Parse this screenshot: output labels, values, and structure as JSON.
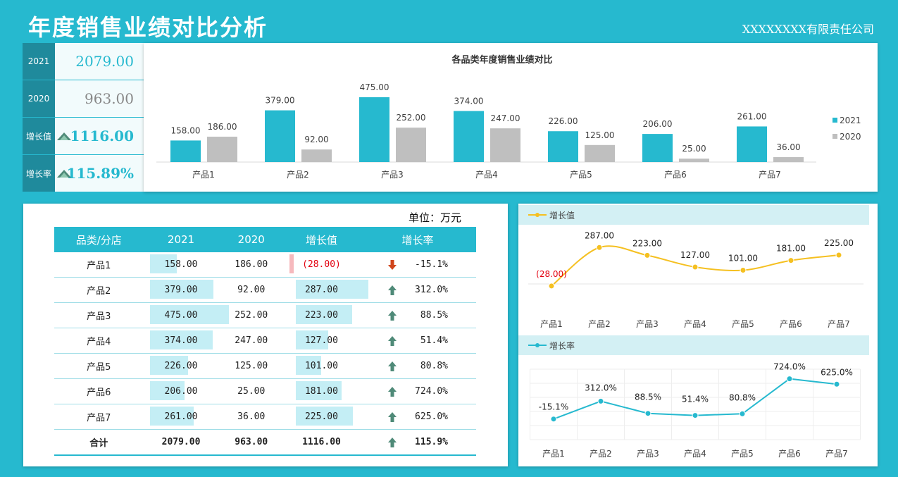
{
  "header": {
    "title": "年度销售业绩对比分析",
    "company": "XXXXXXXX有限责任公司"
  },
  "kpi": {
    "rows": [
      {
        "label": "2021",
        "value": "2079.00",
        "color": "#26b9cf"
      },
      {
        "label": "2020",
        "value": "963.00",
        "color": "#888888"
      },
      {
        "label": "增长值",
        "value": "1116.00",
        "color": "#26b9cf",
        "icon": "tree-icon"
      },
      {
        "label": "增长率",
        "value": "115.89%",
        "color": "#26b9cf",
        "icon": "tree-icon"
      }
    ]
  },
  "chart_data": [
    {
      "type": "bar",
      "title": "各品类年度销售业绩对比",
      "categories": [
        "产品1",
        "产品2",
        "产品3",
        "产品4",
        "产品5",
        "产品6",
        "产品7"
      ],
      "series": [
        {
          "name": "2021",
          "values": [
            158,
            379,
            475,
            374,
            226,
            206,
            261
          ],
          "color": "#26b9cf"
        },
        {
          "name": "2020",
          "values": [
            186,
            92,
            252,
            247,
            125,
            25,
            36
          ],
          "color": "#bfbfbf"
        }
      ],
      "data_labels": [
        [
          "158.00",
          "379.00",
          "475.00",
          "374.00",
          "226.00",
          "206.00",
          "261.00"
        ],
        [
          "186.00",
          "92.00",
          "252.00",
          "247.00",
          "125.00",
          "25.00",
          "36.00"
        ]
      ],
      "ylim": [
        0,
        500
      ],
      "legend": "right"
    },
    {
      "type": "line",
      "series": [
        {
          "name": "增长值",
          "values": [
            -28,
            287,
            223,
            127,
            101,
            181,
            225
          ],
          "color": "#f5c021"
        }
      ],
      "categories": [
        "产品1",
        "产品2",
        "产品3",
        "产品4",
        "产品5",
        "产品6",
        "产品7"
      ],
      "data_labels": [
        "(28.00)",
        "287.00",
        "223.00",
        "127.00",
        "101.00",
        "181.00",
        "225.00"
      ],
      "ylim": [
        -40,
        300
      ],
      "legend": "top-left"
    },
    {
      "type": "line",
      "series": [
        {
          "name": "增长率",
          "values": [
            -15.1,
            312.0,
            88.5,
            51.4,
            80.8,
            724.0,
            625.0
          ],
          "color": "#26b9cf"
        }
      ],
      "categories": [
        "产品1",
        "产品2",
        "产品3",
        "产品4",
        "产品5",
        "产品6",
        "产品7"
      ],
      "data_labels": [
        "-15.1%",
        "312.0%",
        "88.5%",
        "51.4%",
        "80.8%",
        "724.0%",
        "625.0%"
      ],
      "ylim": [
        -200,
        900
      ],
      "legend": "top-left"
    },
    {
      "type": "table",
      "unit": "单位：万元",
      "headers": [
        "品类/分店",
        "2021",
        "2020",
        "增长值",
        "增长率"
      ],
      "rows": [
        {
          "name": "产品1",
          "v2021": "158.00",
          "v2020": "186.00",
          "growth": "(28.00)",
          "rate": "-15.1%",
          "gnum": -28,
          "n2021": 158,
          "up": false
        },
        {
          "name": "产品2",
          "v2021": "379.00",
          "v2020": "92.00",
          "growth": "287.00",
          "rate": "312.0%",
          "gnum": 287,
          "n2021": 379,
          "up": true
        },
        {
          "name": "产品3",
          "v2021": "475.00",
          "v2020": "252.00",
          "growth": "223.00",
          "rate": "88.5%",
          "gnum": 223,
          "n2021": 475,
          "up": true
        },
        {
          "name": "产品4",
          "v2021": "374.00",
          "v2020": "247.00",
          "growth": "127.00",
          "rate": "51.4%",
          "gnum": 127,
          "n2021": 374,
          "up": true
        },
        {
          "name": "产品5",
          "v2021": "226.00",
          "v2020": "125.00",
          "growth": "101.00",
          "rate": "80.8%",
          "gnum": 101,
          "n2021": 226,
          "up": true
        },
        {
          "name": "产品6",
          "v2021": "206.00",
          "v2020": "25.00",
          "growth": "181.00",
          "rate": "724.0%",
          "gnum": 181,
          "n2021": 206,
          "up": true
        },
        {
          "name": "产品7",
          "v2021": "261.00",
          "v2020": "36.00",
          "growth": "225.00",
          "rate": "625.0%",
          "gnum": 225,
          "n2021": 261,
          "up": true
        }
      ],
      "total": {
        "name": "合计",
        "v2021": "2079.00",
        "v2020": "963.00",
        "growth": "1116.00",
        "rate": "115.9%",
        "up": true
      }
    }
  ],
  "colors": {
    "accent": "#26b9cf",
    "gray": "#bfbfbf",
    "line": "#f5c021",
    "negative": "#e2000f",
    "down_arrow": "#d0451b",
    "up_arrow": "#4f8a78"
  }
}
